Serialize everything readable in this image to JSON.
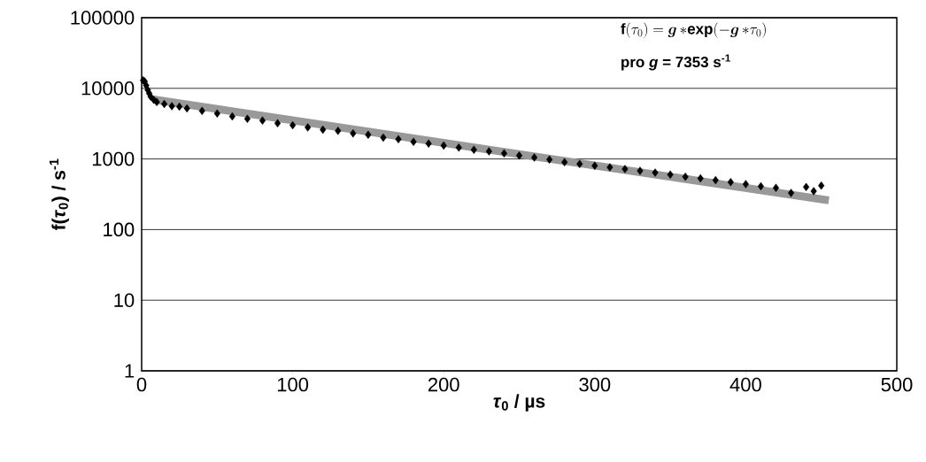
{
  "chart_data": {
    "type": "scatter",
    "xlabel": "*τ*$_{0}$ / µs",
    "ylabel": "f(*τ*$_{0}$) / s$^{-1}$",
    "log": "y",
    "grid": "y",
    "xlim": [
      0,
      500
    ],
    "ylim": [
      1,
      100000
    ],
    "xticks": [
      0,
      100,
      200,
      300,
      400,
      500
    ],
    "yticks": [
      1,
      10,
      100,
      1000,
      10000,
      100000
    ],
    "annotations": [
      "\\textbf{f}(\\tau_{0}) = \\boldsymbol{g}\\,\\mathbf{*exp(-}\\boldsymbol{g}\\,\\mathbf{*}\\tau_{0}\\mathbf{)}",
      "pro *g* = 7353 s$^{-1}$"
    ],
    "series": [
      {
        "color": "#000000",
        "marker": "diamond",
        "x": [
          1,
          2,
          3,
          4,
          5,
          6,
          8,
          10,
          15,
          20,
          25,
          30,
          40,
          50,
          60,
          70,
          80,
          90,
          100,
          110,
          120,
          130,
          140,
          150,
          160,
          170,
          180,
          190,
          200,
          210,
          220,
          230,
          240,
          250,
          260,
          270,
          280,
          290,
          300,
          310,
          320,
          330,
          340,
          350,
          360,
          370,
          380,
          390,
          400,
          410,
          420,
          430,
          440,
          445,
          450
        ],
        "values": [
          13000,
          12500,
          11000,
          9500,
          8500,
          7600,
          6900,
          6400,
          6000,
          5600,
          5500,
          5200,
          4800,
          4400,
          4000,
          3700,
          3500,
          3200,
          3000,
          2800,
          2600,
          2500,
          2300,
          2200,
          2000,
          1900,
          1750,
          1650,
          1550,
          1450,
          1350,
          1280,
          1200,
          1120,
          1050,
          980,
          900,
          850,
          800,
          760,
          720,
          680,
          640,
          600,
          560,
          530,
          500,
          470,
          440,
          410,
          390,
          330,
          400,
          350,
          420
        ]
      },
      {
        "type": "line",
        "color": "#999999",
        "marker": "none",
        "x": [
          8,
          455
        ],
        "values": [
          6933,
          259
        ]
      }
    ]
  }
}
